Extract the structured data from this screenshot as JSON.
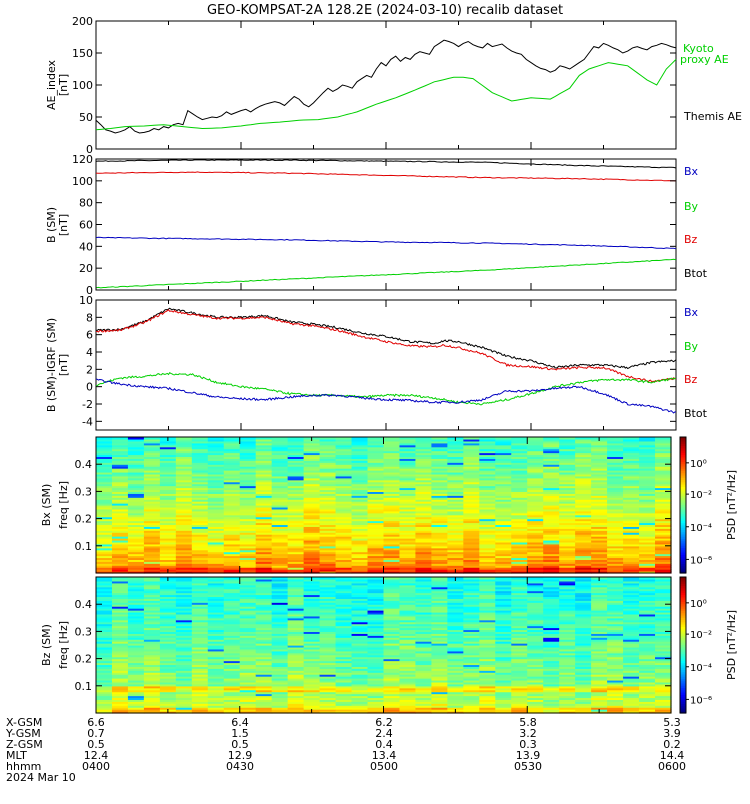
{
  "title": "GEO-KOMPSAT-2A 128.2E (2024-03-10) recalib dataset",
  "colors": {
    "black": "#000000",
    "red": "#e00000",
    "green": "#00d000",
    "blue": "#0000c0"
  },
  "chart_data": [
    {
      "type": "line",
      "panel": "ae",
      "ylabel": "AE_index",
      "yunit": "[nT]",
      "ylim": [
        0,
        200
      ],
      "yticks": [
        0,
        50,
        100,
        150,
        200
      ],
      "legend": [
        "Kyoto",
        "proxy AE",
        "Themis AE"
      ],
      "series": [
        {
          "name": "Themis AE",
          "color": "black",
          "x": [
            0,
            1,
            2,
            3,
            4,
            5,
            6,
            7,
            8,
            9,
            10,
            11,
            12,
            13,
            14,
            15,
            16,
            17,
            18,
            19,
            20,
            21,
            22,
            23,
            24,
            25,
            26,
            27,
            28,
            29,
            30,
            31,
            32,
            33,
            34,
            35,
            36,
            37,
            38,
            39,
            40,
            41,
            42,
            43,
            44,
            45,
            46,
            47,
            48,
            49,
            50,
            51,
            52,
            53,
            54,
            55,
            56,
            57,
            58,
            59,
            60,
            61,
            62,
            63,
            64,
            65,
            66,
            67,
            68,
            69,
            70,
            71,
            72,
            73,
            74,
            75,
            76,
            77,
            78,
            79,
            80,
            81,
            82,
            83,
            84,
            85,
            86,
            87,
            88,
            89,
            90,
            91,
            92,
            93,
            94,
            95,
            96,
            97,
            98,
            99,
            100,
            101,
            102,
            103,
            104,
            105,
            106,
            107,
            108,
            109,
            110,
            111,
            112,
            113,
            114,
            115,
            116,
            117,
            118,
            119,
            120
          ],
          "y": [
            45,
            38,
            30,
            28,
            25,
            27,
            30,
            35,
            28,
            25,
            26,
            28,
            32,
            30,
            35,
            33,
            38,
            40,
            38,
            60,
            55,
            50,
            46,
            48,
            50,
            49,
            52,
            58,
            54,
            57,
            60,
            62,
            58,
            63,
            67,
            70,
            72,
            74,
            72,
            68,
            75,
            82,
            78,
            70,
            66,
            72,
            80,
            88,
            95,
            90,
            94,
            100,
            98,
            95,
            105,
            110,
            115,
            112,
            125,
            135,
            130,
            140,
            145,
            137,
            143,
            140,
            148,
            152,
            150,
            148,
            160,
            165,
            170,
            168,
            165,
            160,
            165,
            168,
            163,
            160,
            158,
            165,
            160,
            162,
            164,
            158,
            153,
            150,
            148,
            140,
            135,
            130,
            126,
            124,
            120,
            123,
            130,
            128,
            125,
            130,
            135,
            140,
            150,
            160,
            158,
            165,
            162,
            158,
            155,
            150,
            153,
            158,
            160,
            157,
            155,
            160,
            162,
            165,
            163,
            160,
            158
          ]
        },
        {
          "name": "Kyoto proxy AE",
          "color": "green",
          "x": [
            0,
            3,
            6,
            10,
            14,
            18,
            22,
            26,
            30,
            34,
            38,
            42,
            46,
            50,
            54,
            58,
            62,
            66,
            70,
            74,
            76,
            78,
            82,
            86,
            90,
            94,
            98,
            100,
            102,
            106,
            110,
            114,
            116,
            118,
            120
          ],
          "y": [
            30,
            32,
            35,
            36,
            38,
            35,
            32,
            33,
            36,
            40,
            42,
            45,
            46,
            50,
            58,
            70,
            80,
            92,
            105,
            112,
            112,
            110,
            88,
            75,
            80,
            78,
            95,
            115,
            125,
            135,
            130,
            108,
            100,
            125,
            140
          ]
        }
      ]
    },
    {
      "type": "line",
      "panel": "b",
      "ylabel": "B (SM)",
      "yunit": "[nT]",
      "ylim": [
        0,
        120
      ],
      "yticks": [
        0,
        20,
        40,
        60,
        80,
        100,
        120
      ],
      "legend": [
        "Bx",
        "By",
        "Bz",
        "Btot"
      ],
      "series": [
        {
          "name": "Btot",
          "color": "black",
          "x": [
            0,
            20,
            40,
            60,
            80,
            100,
            120
          ],
          "y": [
            118,
            119,
            119,
            118,
            117,
            114,
            112
          ]
        },
        {
          "name": "Bx",
          "color": "red",
          "x": [
            0,
            20,
            40,
            60,
            80,
            100,
            120
          ],
          "y": [
            107,
            108,
            107,
            105,
            103,
            102,
            100
          ]
        },
        {
          "name": "Bz",
          "color": "blue",
          "x": [
            0,
            20,
            40,
            60,
            80,
            100,
            120
          ],
          "y": [
            48,
            47,
            46,
            44,
            43,
            41,
            38
          ]
        },
        {
          "name": "By",
          "color": "green",
          "x": [
            0,
            20,
            40,
            60,
            80,
            100,
            120
          ],
          "y": [
            2,
            6,
            10,
            14,
            18,
            23,
            28
          ]
        }
      ]
    },
    {
      "type": "line",
      "panel": "db",
      "ylabel": "B (SM)-IGRF (SM)",
      "yunit": "[nT]",
      "ylim": [
        -5,
        10
      ],
      "yticks": [
        -4,
        -2,
        0,
        2,
        4,
        6,
        8,
        10
      ],
      "legend": [
        "Bx",
        "By",
        "Bz",
        "Btot"
      ],
      "series": [
        {
          "name": "Btot",
          "color": "black",
          "x": [
            0,
            5,
            10,
            15,
            20,
            25,
            30,
            35,
            40,
            45,
            50,
            55,
            60,
            65,
            70,
            72,
            75,
            80,
            85,
            90,
            95,
            100,
            105,
            110,
            115,
            120
          ],
          "y": [
            6.5,
            6.6,
            7.5,
            9.0,
            8.5,
            8.0,
            8.0,
            8.2,
            7.5,
            7.2,
            6.8,
            6.2,
            5.8,
            5.2,
            5.0,
            5.3,
            5.2,
            4.5,
            3.5,
            3.0,
            2.2,
            2.5,
            2.5,
            2.2,
            2.8,
            3.0
          ]
        },
        {
          "name": "Bx",
          "color": "red",
          "x": [
            0,
            5,
            10,
            15,
            20,
            25,
            30,
            35,
            40,
            45,
            50,
            55,
            60,
            65,
            70,
            72,
            75,
            80,
            85,
            90,
            95,
            100,
            105,
            110,
            115,
            120
          ],
          "y": [
            6.4,
            6.5,
            7.4,
            8.8,
            8.3,
            7.9,
            7.9,
            8.0,
            7.3,
            7.0,
            6.5,
            5.8,
            5.2,
            4.7,
            4.6,
            4.8,
            4.5,
            3.8,
            2.5,
            2.3,
            2.0,
            2.2,
            2.2,
            1.2,
            0.6,
            1.0
          ]
        },
        {
          "name": "By",
          "color": "green",
          "x": [
            0,
            5,
            10,
            15,
            20,
            25,
            30,
            35,
            40,
            45,
            50,
            55,
            60,
            65,
            70,
            75,
            80,
            85,
            90,
            95,
            100,
            105,
            110,
            115,
            120
          ],
          "y": [
            0.2,
            1.0,
            1.2,
            1.5,
            1.4,
            0.5,
            0.0,
            -0.3,
            -0.8,
            -1.0,
            -1.0,
            -1.2,
            -1.0,
            -1.0,
            -1.3,
            -1.8,
            -2.0,
            -1.5,
            -0.8,
            0.0,
            0.5,
            0.8,
            0.8,
            0.5,
            1.0
          ]
        },
        {
          "name": "Bz",
          "color": "blue",
          "x": [
            0,
            5,
            10,
            15,
            20,
            25,
            30,
            35,
            40,
            45,
            50,
            55,
            60,
            65,
            70,
            75,
            80,
            85,
            90,
            95,
            100,
            105,
            110,
            115,
            120
          ],
          "y": [
            0.8,
            0.3,
            0.0,
            -0.2,
            -0.7,
            -1.2,
            -1.4,
            -1.5,
            -1.2,
            -1.0,
            -1.0,
            -1.3,
            -1.5,
            -1.6,
            -1.8,
            -1.8,
            -1.5,
            -0.5,
            -0.5,
            -0.2,
            0.0,
            -0.8,
            -2.0,
            -2.3,
            -3.0
          ]
        }
      ]
    },
    {
      "type": "heatmap",
      "panel": "bx-spec",
      "ylabel": "Bx (SM)",
      "yunit": "freq [Hz]",
      "ylim": [
        0,
        0.5
      ],
      "yticks": [
        0.1,
        0.2,
        0.3,
        0.4
      ],
      "colorbar_label": "PSD [nT²/Hz]",
      "colorbar_ticks": [
        "10⁰",
        "10⁻²",
        "10⁻⁴",
        "10⁻⁶"
      ]
    },
    {
      "type": "heatmap",
      "panel": "bz-spec",
      "ylabel": "Bz (SM)",
      "yunit": "freq [Hz]",
      "ylim": [
        0,
        0.5
      ],
      "yticks": [
        0.1,
        0.2,
        0.3,
        0.4
      ],
      "colorbar_label": "PSD [nT²/Hz]",
      "colorbar_ticks": [
        "10⁰",
        "10⁻²",
        "10⁻⁴",
        "10⁻⁶"
      ]
    }
  ],
  "ephemeris": {
    "labels": [
      "X-GSM",
      "Y-GSM",
      "Z-GSM",
      "MLT",
      "hhmm",
      "2024 Mar 10"
    ],
    "columns": [
      [
        "6.6",
        "0.7",
        "0.5",
        "12.4",
        "0400"
      ],
      [
        "6.4",
        "1.5",
        "0.5",
        "12.9",
        "0430"
      ],
      [
        "6.2",
        "2.4",
        "0.4",
        "13.4",
        "0500"
      ],
      [
        "5.8",
        "3.2",
        "0.3",
        "13.9",
        "0530"
      ],
      [
        "5.3",
        "3.9",
        "0.2",
        "14.4",
        "0600"
      ]
    ]
  }
}
